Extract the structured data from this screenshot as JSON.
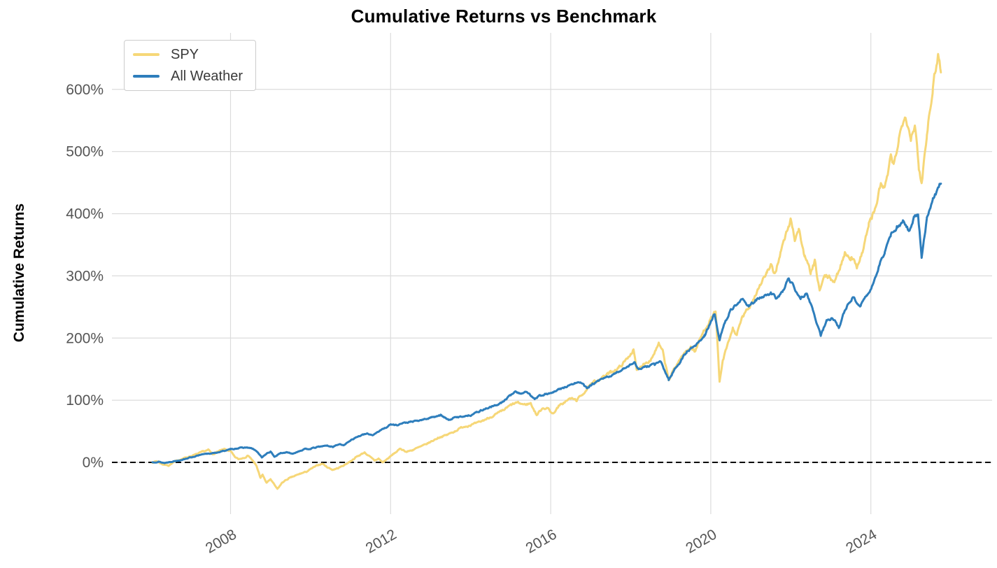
{
  "figure": {
    "title": "Cumulative Returns vs Benchmark",
    "background_color": "#ffffff"
  },
  "axes": {
    "y_label": "Cumulative Returns",
    "y_ticks": [
      {
        "value": 0,
        "label": "0%"
      },
      {
        "value": 100,
        "label": "100%"
      },
      {
        "value": 200,
        "label": "200%"
      },
      {
        "value": 300,
        "label": "300%"
      },
      {
        "value": 400,
        "label": "400%"
      },
      {
        "value": 500,
        "label": "500%"
      },
      {
        "value": 600,
        "label": "600%"
      }
    ],
    "x_ticks": [
      {
        "value": 2008,
        "label": "2008"
      },
      {
        "value": 2012,
        "label": "2012"
      },
      {
        "value": 2016,
        "label": "2016"
      },
      {
        "value": 2020,
        "label": "2020"
      },
      {
        "value": 2024,
        "label": "2024"
      }
    ],
    "grid_color": "#dcdcdc",
    "tick_label_color": "#555555",
    "zero_line": {
      "value": 0,
      "style": "dashed",
      "color": "#000000"
    }
  },
  "legend": {
    "items": [
      {
        "label": "SPY",
        "color": "#f6d778"
      },
      {
        "label": "All Weather",
        "color": "#2e7ebc"
      }
    ]
  },
  "chart_data": {
    "type": "line",
    "title": "Cumulative Returns vs Benchmark",
    "xlabel": "",
    "ylabel": "Cumulative Returns",
    "x_range_years": [
      2006.05,
      2025.78
    ],
    "y_ticks_percent": [
      0,
      100,
      200,
      300,
      400,
      500,
      600
    ],
    "grid": true,
    "legend_position": "upper-left",
    "series": [
      {
        "name": "SPY",
        "color": "#f6d778",
        "points": [
          [
            2006.05,
            0
          ],
          [
            2006.15,
            2
          ],
          [
            2006.3,
            -3
          ],
          [
            2006.45,
            -5
          ],
          [
            2006.6,
            1
          ],
          [
            2006.8,
            6
          ],
          [
            2007.0,
            10
          ],
          [
            2007.15,
            13
          ],
          [
            2007.3,
            17
          ],
          [
            2007.45,
            20
          ],
          [
            2007.55,
            13
          ],
          [
            2007.7,
            18
          ],
          [
            2007.85,
            21
          ],
          [
            2008.0,
            18
          ],
          [
            2008.1,
            9
          ],
          [
            2008.2,
            5
          ],
          [
            2008.35,
            8
          ],
          [
            2008.45,
            11
          ],
          [
            2008.55,
            3
          ],
          [
            2008.65,
            -6
          ],
          [
            2008.75,
            -25
          ],
          [
            2008.8,
            -20
          ],
          [
            2008.9,
            -33
          ],
          [
            2009.0,
            -27
          ],
          [
            2009.05,
            -32
          ],
          [
            2009.17,
            -43
          ],
          [
            2009.3,
            -32
          ],
          [
            2009.45,
            -26
          ],
          [
            2009.6,
            -22
          ],
          [
            2009.75,
            -18
          ],
          [
            2009.9,
            -15
          ],
          [
            2010.05,
            -9
          ],
          [
            2010.2,
            -4
          ],
          [
            2010.3,
            -2
          ],
          [
            2010.4,
            -7
          ],
          [
            2010.55,
            -12
          ],
          [
            2010.7,
            -9
          ],
          [
            2010.85,
            -4
          ],
          [
            2011.0,
            2
          ],
          [
            2011.15,
            9
          ],
          [
            2011.35,
            16
          ],
          [
            2011.5,
            8
          ],
          [
            2011.6,
            3
          ],
          [
            2011.7,
            6
          ],
          [
            2011.8,
            0
          ],
          [
            2011.95,
            7
          ],
          [
            2012.1,
            15
          ],
          [
            2012.25,
            22
          ],
          [
            2012.4,
            17
          ],
          [
            2012.55,
            20
          ],
          [
            2012.7,
            24
          ],
          [
            2012.85,
            28
          ],
          [
            2013.0,
            33
          ],
          [
            2013.2,
            40
          ],
          [
            2013.4,
            44
          ],
          [
            2013.6,
            50
          ],
          [
            2013.8,
            57
          ],
          [
            2014.0,
            60
          ],
          [
            2014.2,
            64
          ],
          [
            2014.4,
            70
          ],
          [
            2014.6,
            76
          ],
          [
            2014.8,
            83
          ],
          [
            2015.0,
            92
          ],
          [
            2015.15,
            96
          ],
          [
            2015.35,
            93
          ],
          [
            2015.5,
            95
          ],
          [
            2015.65,
            76
          ],
          [
            2015.8,
            88
          ],
          [
            2015.95,
            86
          ],
          [
            2016.05,
            78
          ],
          [
            2016.2,
            90
          ],
          [
            2016.35,
            97
          ],
          [
            2016.5,
            103
          ],
          [
            2016.65,
            100
          ],
          [
            2016.8,
            110
          ],
          [
            2016.95,
            121
          ],
          [
            2017.1,
            130
          ],
          [
            2017.3,
            137
          ],
          [
            2017.5,
            145
          ],
          [
            2017.7,
            152
          ],
          [
            2017.85,
            162
          ],
          [
            2018.0,
            175
          ],
          [
            2018.07,
            181
          ],
          [
            2018.15,
            147
          ],
          [
            2018.3,
            158
          ],
          [
            2018.5,
            165
          ],
          [
            2018.7,
            190
          ],
          [
            2018.8,
            178
          ],
          [
            2018.95,
            132
          ],
          [
            2019.1,
            152
          ],
          [
            2019.25,
            168
          ],
          [
            2019.4,
            180
          ],
          [
            2019.5,
            186
          ],
          [
            2019.6,
            178
          ],
          [
            2019.75,
            201
          ],
          [
            2019.9,
            220
          ],
          [
            2020.05,
            235
          ],
          [
            2020.12,
            245
          ],
          [
            2020.22,
            128
          ],
          [
            2020.3,
            163
          ],
          [
            2020.45,
            195
          ],
          [
            2020.55,
            215
          ],
          [
            2020.65,
            205
          ],
          [
            2020.8,
            235
          ],
          [
            2020.95,
            248
          ],
          [
            2021.1,
            268
          ],
          [
            2021.25,
            288
          ],
          [
            2021.4,
            305
          ],
          [
            2021.5,
            315
          ],
          [
            2021.6,
            302
          ],
          [
            2021.75,
            340
          ],
          [
            2021.85,
            360
          ],
          [
            2022.0,
            391
          ],
          [
            2022.1,
            360
          ],
          [
            2022.2,
            375
          ],
          [
            2022.35,
            330
          ],
          [
            2022.5,
            305
          ],
          [
            2022.6,
            322
          ],
          [
            2022.72,
            276
          ],
          [
            2022.85,
            300
          ],
          [
            2023.0,
            296
          ],
          [
            2023.1,
            290
          ],
          [
            2023.35,
            337
          ],
          [
            2023.5,
            330
          ],
          [
            2023.65,
            316
          ],
          [
            2023.8,
            340
          ],
          [
            2023.95,
            384
          ],
          [
            2024.1,
            405
          ],
          [
            2024.25,
            448
          ],
          [
            2024.35,
            440
          ],
          [
            2024.5,
            490
          ],
          [
            2024.57,
            477
          ],
          [
            2024.7,
            520
          ],
          [
            2024.85,
            563
          ],
          [
            2025.0,
            522
          ],
          [
            2025.1,
            545
          ],
          [
            2025.2,
            470
          ],
          [
            2025.27,
            449
          ],
          [
            2025.4,
            530
          ],
          [
            2025.55,
            605
          ],
          [
            2025.68,
            658
          ],
          [
            2025.75,
            630
          ]
        ]
      },
      {
        "name": "All Weather",
        "color": "#2e7ebc",
        "points": [
          [
            2006.05,
            0
          ],
          [
            2006.2,
            1
          ],
          [
            2006.35,
            -1
          ],
          [
            2006.5,
            1
          ],
          [
            2006.7,
            3
          ],
          [
            2007.0,
            8
          ],
          [
            2007.2,
            11
          ],
          [
            2007.4,
            14
          ],
          [
            2007.6,
            15
          ],
          [
            2007.8,
            18
          ],
          [
            2008.0,
            21
          ],
          [
            2008.2,
            23
          ],
          [
            2008.4,
            24
          ],
          [
            2008.55,
            22
          ],
          [
            2008.65,
            18
          ],
          [
            2008.78,
            8
          ],
          [
            2008.9,
            14
          ],
          [
            2009.0,
            17
          ],
          [
            2009.1,
            9
          ],
          [
            2009.25,
            15
          ],
          [
            2009.4,
            16
          ],
          [
            2009.55,
            14
          ],
          [
            2009.7,
            18
          ],
          [
            2009.85,
            21
          ],
          [
            2010.0,
            22
          ],
          [
            2010.2,
            25
          ],
          [
            2010.4,
            27
          ],
          [
            2010.55,
            25
          ],
          [
            2010.7,
            29
          ],
          [
            2010.85,
            28
          ],
          [
            2011.0,
            36
          ],
          [
            2011.2,
            42
          ],
          [
            2011.4,
            46
          ],
          [
            2011.55,
            44
          ],
          [
            2011.7,
            50
          ],
          [
            2011.85,
            55
          ],
          [
            2012.0,
            61
          ],
          [
            2012.15,
            60
          ],
          [
            2012.3,
            63
          ],
          [
            2012.5,
            65
          ],
          [
            2012.7,
            67
          ],
          [
            2012.9,
            70
          ],
          [
            2013.1,
            74
          ],
          [
            2013.25,
            76
          ],
          [
            2013.45,
            68
          ],
          [
            2013.6,
            72
          ],
          [
            2013.8,
            74
          ],
          [
            2014.0,
            76
          ],
          [
            2014.2,
            82
          ],
          [
            2014.4,
            87
          ],
          [
            2014.6,
            91
          ],
          [
            2014.8,
            97
          ],
          [
            2015.0,
            108
          ],
          [
            2015.1,
            114
          ],
          [
            2015.25,
            111
          ],
          [
            2015.4,
            113
          ],
          [
            2015.6,
            103
          ],
          [
            2015.75,
            108
          ],
          [
            2015.9,
            110
          ],
          [
            2016.05,
            112
          ],
          [
            2016.2,
            117
          ],
          [
            2016.4,
            122
          ],
          [
            2016.6,
            127
          ],
          [
            2016.75,
            129
          ],
          [
            2016.9,
            119
          ],
          [
            2017.05,
            126
          ],
          [
            2017.2,
            131
          ],
          [
            2017.4,
            137
          ],
          [
            2017.6,
            142
          ],
          [
            2017.8,
            150
          ],
          [
            2018.0,
            158
          ],
          [
            2018.1,
            160
          ],
          [
            2018.2,
            150
          ],
          [
            2018.4,
            154
          ],
          [
            2018.6,
            158
          ],
          [
            2018.75,
            162
          ],
          [
            2018.95,
            133
          ],
          [
            2019.1,
            150
          ],
          [
            2019.25,
            163
          ],
          [
            2019.4,
            178
          ],
          [
            2019.55,
            185
          ],
          [
            2019.7,
            193
          ],
          [
            2019.85,
            205
          ],
          [
            2020.0,
            225
          ],
          [
            2020.1,
            240
          ],
          [
            2020.22,
            196
          ],
          [
            2020.35,
            225
          ],
          [
            2020.5,
            245
          ],
          [
            2020.65,
            255
          ],
          [
            2020.8,
            262
          ],
          [
            2020.95,
            252
          ],
          [
            2021.1,
            260
          ],
          [
            2021.3,
            266
          ],
          [
            2021.5,
            271
          ],
          [
            2021.65,
            264
          ],
          [
            2021.8,
            275
          ],
          [
            2021.95,
            296
          ],
          [
            2022.1,
            280
          ],
          [
            2022.25,
            265
          ],
          [
            2022.4,
            272
          ],
          [
            2022.55,
            245
          ],
          [
            2022.75,
            204
          ],
          [
            2022.9,
            228
          ],
          [
            2023.05,
            232
          ],
          [
            2023.2,
            218
          ],
          [
            2023.35,
            245
          ],
          [
            2023.55,
            265
          ],
          [
            2023.75,
            252
          ],
          [
            2023.9,
            268
          ],
          [
            2024.05,
            285
          ],
          [
            2024.2,
            315
          ],
          [
            2024.35,
            340
          ],
          [
            2024.5,
            365
          ],
          [
            2024.65,
            378
          ],
          [
            2024.8,
            388
          ],
          [
            2024.95,
            372
          ],
          [
            2025.1,
            398
          ],
          [
            2025.18,
            400
          ],
          [
            2025.27,
            330
          ],
          [
            2025.4,
            392
          ],
          [
            2025.55,
            425
          ],
          [
            2025.68,
            440
          ],
          [
            2025.75,
            452
          ]
        ]
      }
    ]
  }
}
